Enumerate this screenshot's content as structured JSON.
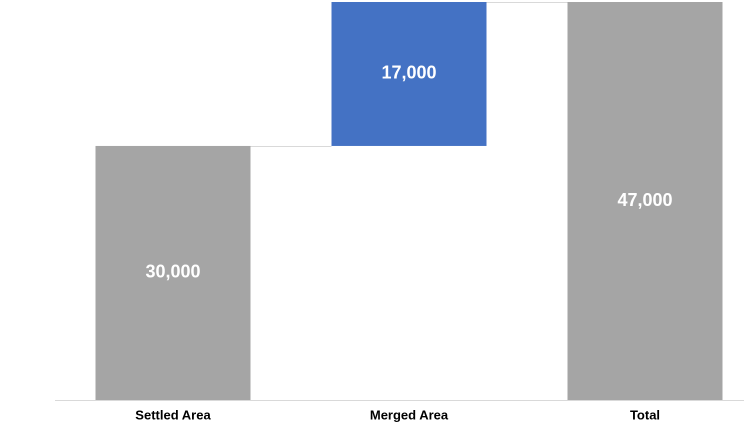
{
  "chart_data": {
    "type": "waterfall",
    "categories": [
      "Settled Area",
      "Merged Area",
      "Total"
    ],
    "values": [
      30000,
      17000,
      47000
    ],
    "value_labels": [
      "30,000",
      "17,000",
      "47,000"
    ],
    "measures": [
      "absolute",
      "relative",
      "total"
    ],
    "colors": [
      "#a5a5a5",
      "#4472c4",
      "#a5a5a5"
    ],
    "connectors": true
  }
}
